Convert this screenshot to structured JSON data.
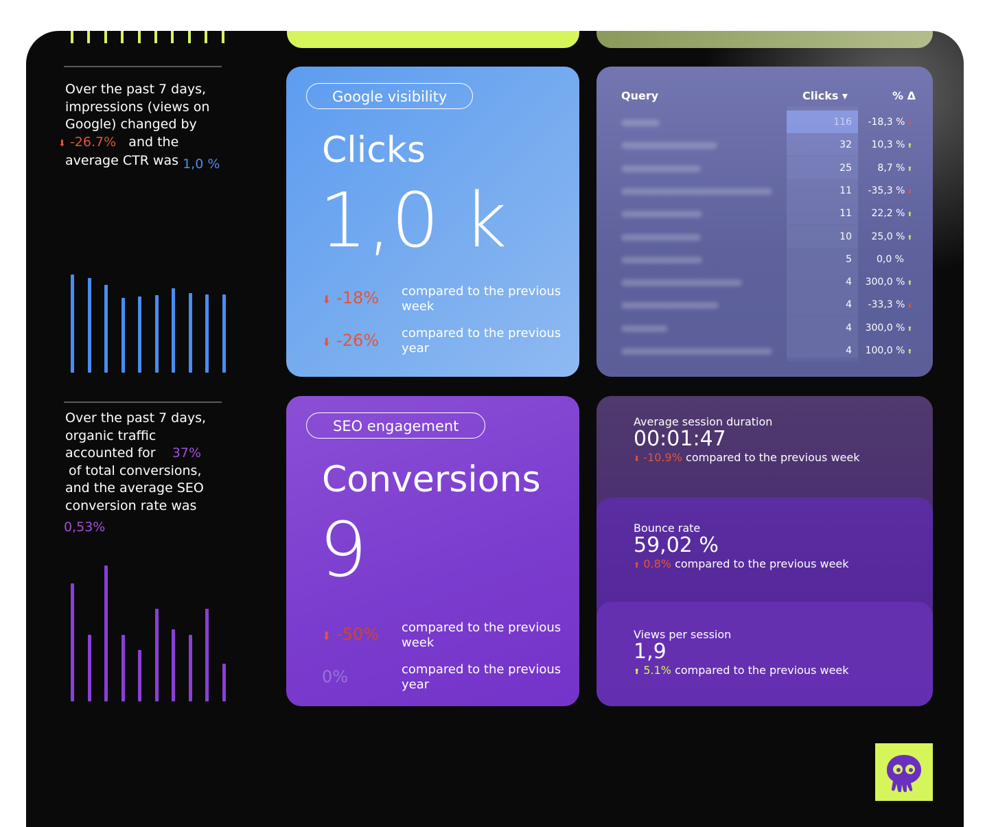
{
  "colors": {
    "accent_lime": "#d5f55a",
    "negative": "#e2553a",
    "positive": "#d5f55a",
    "blue": "#4a8df0",
    "purple": "#a24fd9"
  },
  "left": {
    "summary1": {
      "line1": "Over the past 7 days,",
      "line2": "impressions (views on",
      "line3": "Google) changed by",
      "change": "-26.7%",
      "line4": "and the",
      "line5": "average CTR was",
      "ctr": "1,0 %"
    },
    "summary2": {
      "line1": "Over the past 7 days,",
      "line2": "organic traffic",
      "line3": "accounted for",
      "share": "37%",
      "line4": "of total conversions,",
      "line5": "and the average SEO",
      "line6": "conversion rate was",
      "rate": "0,53%"
    },
    "bars_blue": [
      0.85,
      0.82,
      0.76,
      0.65,
      0.66,
      0.67,
      0.73,
      0.69,
      0.68,
      0.68
    ],
    "bars_purple": [
      0.85,
      0.48,
      0.98,
      0.48,
      0.37,
      0.67,
      0.52,
      0.48,
      0.67,
      0.27
    ]
  },
  "visibility_card": {
    "pill": "Google visibility",
    "title": "Clicks",
    "value": "1,0 k",
    "cmp1_value": "-18%",
    "cmp1_text": "compared to the previous week",
    "cmp2_value": "-26%",
    "cmp2_text": "compared to the previous year"
  },
  "query_table": {
    "headers": {
      "query": "Query",
      "clicks": "Clicks ▾",
      "pct": "% Δ"
    },
    "rows": [
      {
        "clicks": "116",
        "pct": "-18,3 %",
        "dir": "down",
        "share": 1.0
      },
      {
        "clicks": "32",
        "pct": "10,3 %",
        "dir": "up",
        "share": 0.28
      },
      {
        "clicks": "25",
        "pct": "8,7 %",
        "dir": "up",
        "share": 0.22
      },
      {
        "clicks": "11",
        "pct": "-35,3 %",
        "dir": "down",
        "share": 0.1
      },
      {
        "clicks": "11",
        "pct": "22,2 %",
        "dir": "up",
        "share": 0.1
      },
      {
        "clicks": "10",
        "pct": "25,0 %",
        "dir": "up",
        "share": 0.09
      },
      {
        "clicks": "5",
        "pct": "0,0 %",
        "dir": "none",
        "share": 0.04
      },
      {
        "clicks": "4",
        "pct": "300,0 %",
        "dir": "up",
        "share": 0.03
      },
      {
        "clicks": "4",
        "pct": "-33,3 %",
        "dir": "down",
        "share": 0.03
      },
      {
        "clicks": "4",
        "pct": "300,0 %",
        "dir": "up",
        "share": 0.03
      },
      {
        "clicks": "4",
        "pct": "100,0 %",
        "dir": "up",
        "share": 0.03
      }
    ]
  },
  "engagement_card": {
    "pill": "SEO engagement",
    "title": "Conversions",
    "value": "9",
    "cmp1_value": "-50%",
    "cmp1_text": "compared to the previous week",
    "cmp2_value": "0%",
    "cmp2_text": "compared to the previous year"
  },
  "metrics": [
    {
      "label": "Average session duration",
      "value": "00:01:47",
      "change": "-10.9%",
      "dir": "down",
      "text": "compared to the previous week"
    },
    {
      "label": "Bounce rate",
      "value": "59,02 %",
      "change": "0.8%",
      "dir": "up-neg",
      "text": "compared to the previous week"
    },
    {
      "label": "Views per session",
      "value": "1,9",
      "change": "5.1%",
      "dir": "up",
      "text": "compared to the previous week"
    }
  ],
  "logo_icon": "octopus-skull-icon"
}
